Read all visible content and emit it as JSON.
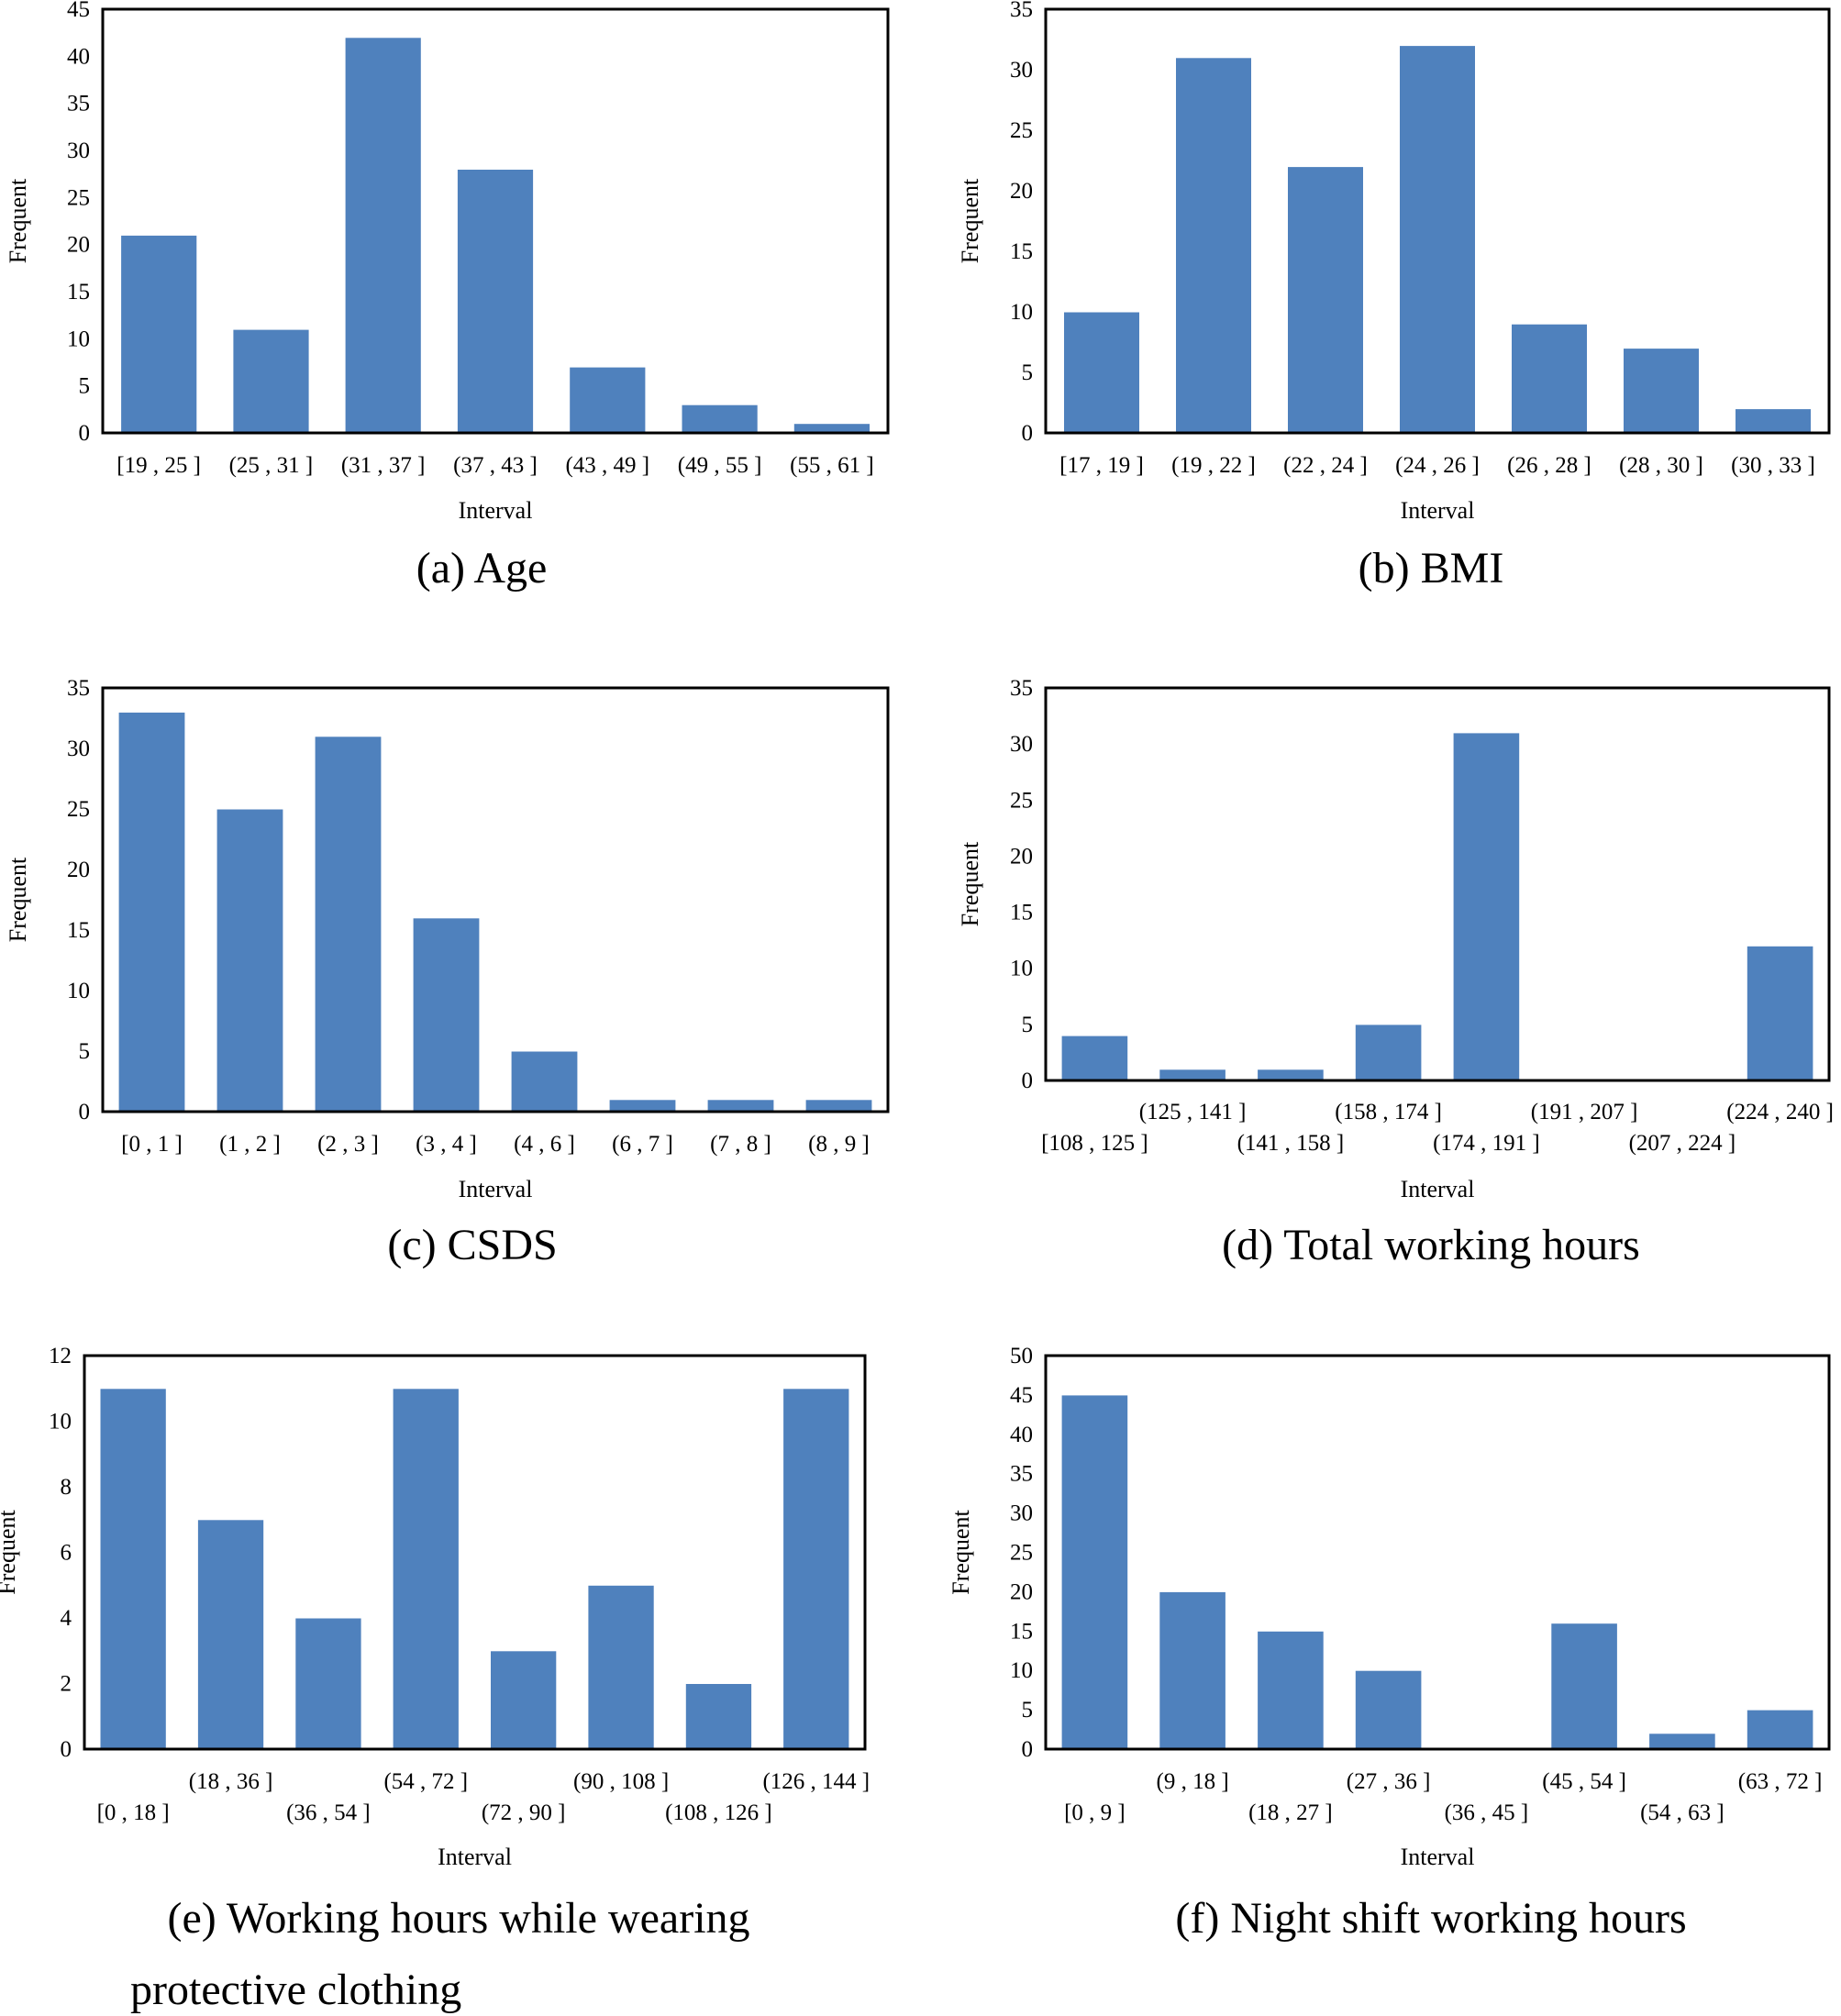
{
  "colors": {
    "bar": "#4f81bd",
    "frame": "#000000",
    "background": "#ffffff"
  },
  "chart_data": [
    {
      "id": "a",
      "type": "bar",
      "caption": [
        "(a)  Age"
      ],
      "xlabel": "Interval",
      "ylabel": "Frequent",
      "ylim": [
        0,
        45
      ],
      "yticks": [
        0,
        5,
        10,
        15,
        20,
        25,
        30,
        35,
        40,
        45
      ],
      "label_layout": "single",
      "categories": [
        "[19 , 25 ]",
        "(25 , 31 ]",
        "(31 , 37 ]",
        "(37 , 43 ]",
        "(43 , 49 ]",
        "(49 , 55 ]",
        "(55 , 61 ]"
      ],
      "values": [
        21,
        11,
        42,
        28,
        7,
        3,
        1
      ]
    },
    {
      "id": "b",
      "type": "bar",
      "caption": [
        "(b) BMI"
      ],
      "xlabel": "Interval",
      "ylabel": "Frequent",
      "ylim": [
        0,
        35
      ],
      "yticks": [
        0,
        5,
        10,
        15,
        20,
        25,
        30,
        35
      ],
      "label_layout": "single",
      "categories": [
        "[17 , 19 ]",
        "(19 , 22 ]",
        "(22 , 24 ]",
        "(24 , 26 ]",
        "(26 , 28 ]",
        "(28 , 30 ]",
        "(30 , 33 ]"
      ],
      "values": [
        10,
        31,
        22,
        32,
        9,
        7,
        2
      ]
    },
    {
      "id": "c",
      "type": "bar",
      "caption": [
        "(c)  CSDS"
      ],
      "xlabel": "Interval",
      "ylabel": "Frequent",
      "ylim": [
        0,
        35
      ],
      "yticks": [
        0,
        5,
        10,
        15,
        20,
        25,
        30,
        35
      ],
      "label_layout": "single",
      "categories": [
        "[0 , 1 ]",
        "(1 , 2 ]",
        "(2 , 3 ]",
        "(3 , 4 ]",
        "(4 , 6 ]",
        "(6 , 7 ]",
        "(7 , 8 ]",
        "(8 , 9 ]"
      ],
      "values": [
        33,
        25,
        31,
        16,
        5,
        1,
        1,
        1
      ]
    },
    {
      "id": "d",
      "type": "bar",
      "caption": [
        "(d)  Total working hours"
      ],
      "xlabel": "Interval",
      "ylabel": "Frequent",
      "ylim": [
        0,
        35
      ],
      "yticks": [
        0,
        5,
        10,
        15,
        20,
        25,
        30,
        35
      ],
      "label_layout": "staggered",
      "categories": [
        "[108 , 125 ]",
        "(125 , 141 ]",
        "(141 , 158 ]",
        "(158 , 174 ]",
        "(174 , 191 ]",
        "(191 , 207 ]",
        "(207 , 224 ]",
        "(224 , 240 ]"
      ],
      "values": [
        4,
        1,
        1,
        5,
        31,
        0,
        0,
        12
      ]
    },
    {
      "id": "e",
      "type": "bar",
      "caption": [
        "(e)  Working  hours  while  wearing",
        "protective  clothing"
      ],
      "xlabel": "Interval",
      "ylabel": "Frequent",
      "ylim": [
        0,
        12
      ],
      "yticks": [
        0,
        2,
        4,
        6,
        8,
        10,
        12
      ],
      "label_layout": "staggered",
      "categories": [
        "[0 , 18 ]",
        "(18 , 36 ]",
        "(36 , 54 ]",
        "(54 , 72 ]",
        "(72 , 90 ]",
        "(90 , 108 ]",
        "(108 , 126 ]",
        "(126 , 144 ]"
      ],
      "values": [
        11,
        7,
        4,
        11,
        3,
        5,
        2,
        11
      ]
    },
    {
      "id": "f",
      "type": "bar",
      "caption": [
        "(f)  Night shift working hours"
      ],
      "xlabel": "Interval",
      "ylabel": "Frequent",
      "ylim": [
        0,
        50
      ],
      "yticks": [
        0,
        5,
        10,
        15,
        20,
        25,
        30,
        35,
        40,
        45,
        50
      ],
      "label_layout": "staggered",
      "categories": [
        "[0 , 9 ]",
        "(9 , 18 ]",
        "(18 , 27 ]",
        "(27 , 36 ]",
        "(36 , 45 ]",
        "(45 , 54 ]",
        "(54 , 63 ]",
        "(63 , 72 ]"
      ],
      "values": [
        45,
        20,
        15,
        10,
        0,
        16,
        2,
        5
      ]
    }
  ]
}
